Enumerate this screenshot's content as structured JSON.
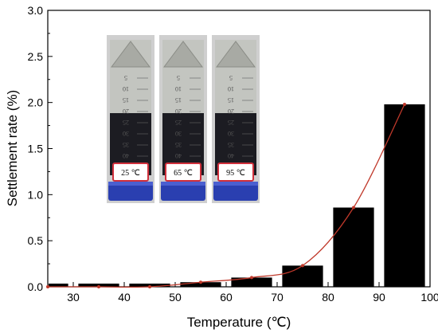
{
  "chart_data": {
    "type": "bar",
    "title": "",
    "xlabel": "Temperature (℃)",
    "ylabel": "Settlement rate (%)",
    "xlim": [
      25,
      100
    ],
    "ylim": [
      0,
      3.0
    ],
    "x_ticks": [
      "30",
      "40",
      "50",
      "60",
      "70",
      "80",
      "90",
      "100"
    ],
    "y_ticks": [
      "0.0",
      "0.5",
      "1.0",
      "1.5",
      "2.0",
      "2.5",
      "3.0"
    ],
    "bar_width": 8,
    "x": [
      25,
      35,
      45,
      55,
      65,
      75,
      85,
      95
    ],
    "values": [
      0.0,
      0.0,
      0.0,
      0.05,
      0.1,
      0.23,
      0.86,
      1.98
    ],
    "line_x": [
      25,
      35,
      45,
      55,
      65,
      75,
      85,
      95
    ],
    "line_y": [
      0.0,
      0.0,
      0.0,
      0.05,
      0.1,
      0.23,
      0.86,
      1.98
    ],
    "bar_color": "#000000",
    "line_color": "#c0392b",
    "grid": false,
    "inset": {
      "vial_labels": [
        "25 ℃",
        "65 ℃",
        "95 ℃"
      ],
      "graduations": [
        "5",
        "10",
        "15",
        "20",
        "25",
        "30",
        "35",
        "40"
      ],
      "cap_color": "#2a3fb0",
      "label_border_color": "#d0303c"
    }
  }
}
